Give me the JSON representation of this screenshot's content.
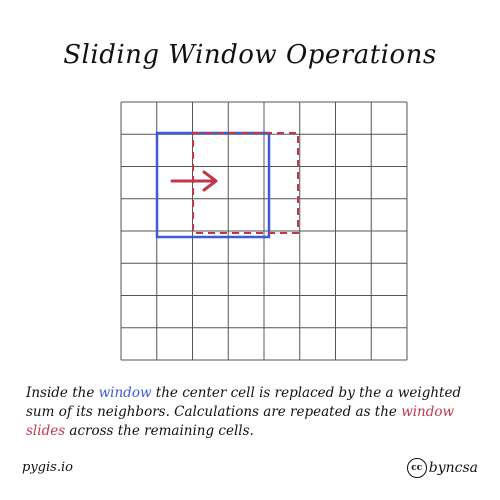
{
  "title": "Sliding Window Operations",
  "caption": {
    "part1": "Inside the ",
    "window_word": "window",
    "part2": " the center cell is replaced by the a weighted sum of its neighbors. Calculations are repeated as the ",
    "window_slides": "window slides",
    "part3": " across the remaining cells."
  },
  "footer": {
    "left": "pygis.io",
    "license_icon": "cc",
    "license_text": "byncsa"
  },
  "icons": {
    "arrow": "right-arrow-icon",
    "license": "creative-commons-icon"
  },
  "colors": {
    "window": "#3d5bd6",
    "slide": "#c0364a",
    "grid": "#555555"
  },
  "grid": {
    "rows": 8,
    "cols": 8
  }
}
